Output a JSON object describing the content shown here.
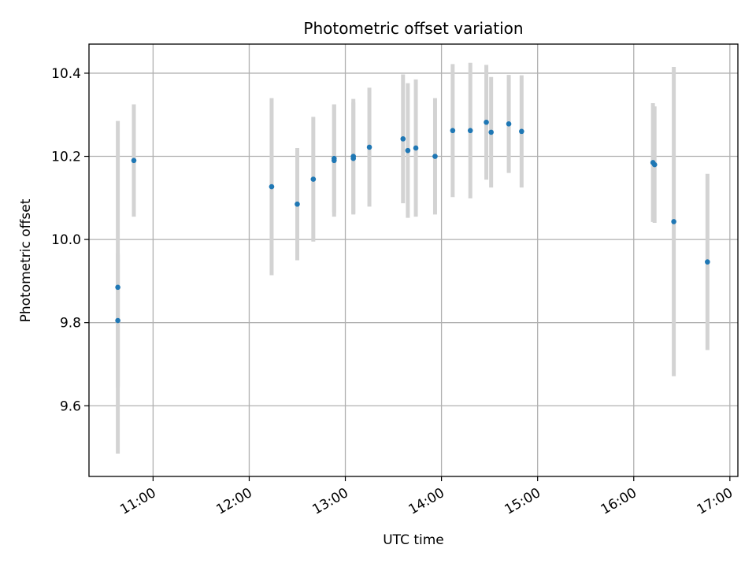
{
  "chart_data": {
    "type": "scatter",
    "title": "Photometric offset variation",
    "xlabel": "UTC time",
    "ylabel": "Photometric offset",
    "x_axis": "time",
    "xlim": [
      "10:20",
      "17:05"
    ],
    "ylim": [
      9.43,
      10.47
    ],
    "x_ticks": [
      "11:00",
      "12:00",
      "13:00",
      "14:00",
      "15:00",
      "16:00",
      "17:00"
    ],
    "y_ticks": [
      "9.6",
      "9.8",
      "10.0",
      "10.2",
      "10.4"
    ],
    "y_tick_values": [
      9.6,
      9.8,
      10.0,
      10.2,
      10.4
    ],
    "grid": true,
    "point_color": "#1f77b4",
    "errorbar_color": "#d3d3d3",
    "points": [
      {
        "x": "10:38",
        "y": 9.885,
        "err": 0.4
      },
      {
        "x": "10:38",
        "y": 9.805,
        "err": 0.16
      },
      {
        "x": "10:48",
        "y": 10.19,
        "err": 0.135
      },
      {
        "x": "12:14",
        "y": 10.127,
        "err": 0.213
      },
      {
        "x": "12:30",
        "y": 10.085,
        "err": 0.135
      },
      {
        "x": "12:40",
        "y": 10.145,
        "err": 0.15
      },
      {
        "x": "12:53",
        "y": 10.19,
        "err": 0.135
      },
      {
        "x": "12:53",
        "y": 10.195,
        "err": 0.13
      },
      {
        "x": "13:05",
        "y": 10.2,
        "err": 0.138
      },
      {
        "x": "13:05",
        "y": 10.195,
        "err": 0.135
      },
      {
        "x": "13:15",
        "y": 10.222,
        "err": 0.143
      },
      {
        "x": "13:36",
        "y": 10.242,
        "err": 0.155
      },
      {
        "x": "13:39",
        "y": 10.214,
        "err": 0.162
      },
      {
        "x": "13:44",
        "y": 10.22,
        "err": 0.165
      },
      {
        "x": "13:56",
        "y": 10.2,
        "err": 0.14
      },
      {
        "x": "14:07",
        "y": 10.262,
        "err": 0.16
      },
      {
        "x": "14:18",
        "y": 10.262,
        "err": 0.163
      },
      {
        "x": "14:28",
        "y": 10.282,
        "err": 0.138
      },
      {
        "x": "14:31",
        "y": 10.258,
        "err": 0.133
      },
      {
        "x": "14:42",
        "y": 10.278,
        "err": 0.118
      },
      {
        "x": "14:50",
        "y": 10.26,
        "err": 0.135
      },
      {
        "x": "16:12",
        "y": 10.185,
        "err": 0.143
      },
      {
        "x": "16:13",
        "y": 10.18,
        "err": 0.14
      },
      {
        "x": "16:25",
        "y": 10.043,
        "err": 0.372
      },
      {
        "x": "16:46",
        "y": 9.946,
        "err": 0.212
      }
    ]
  }
}
